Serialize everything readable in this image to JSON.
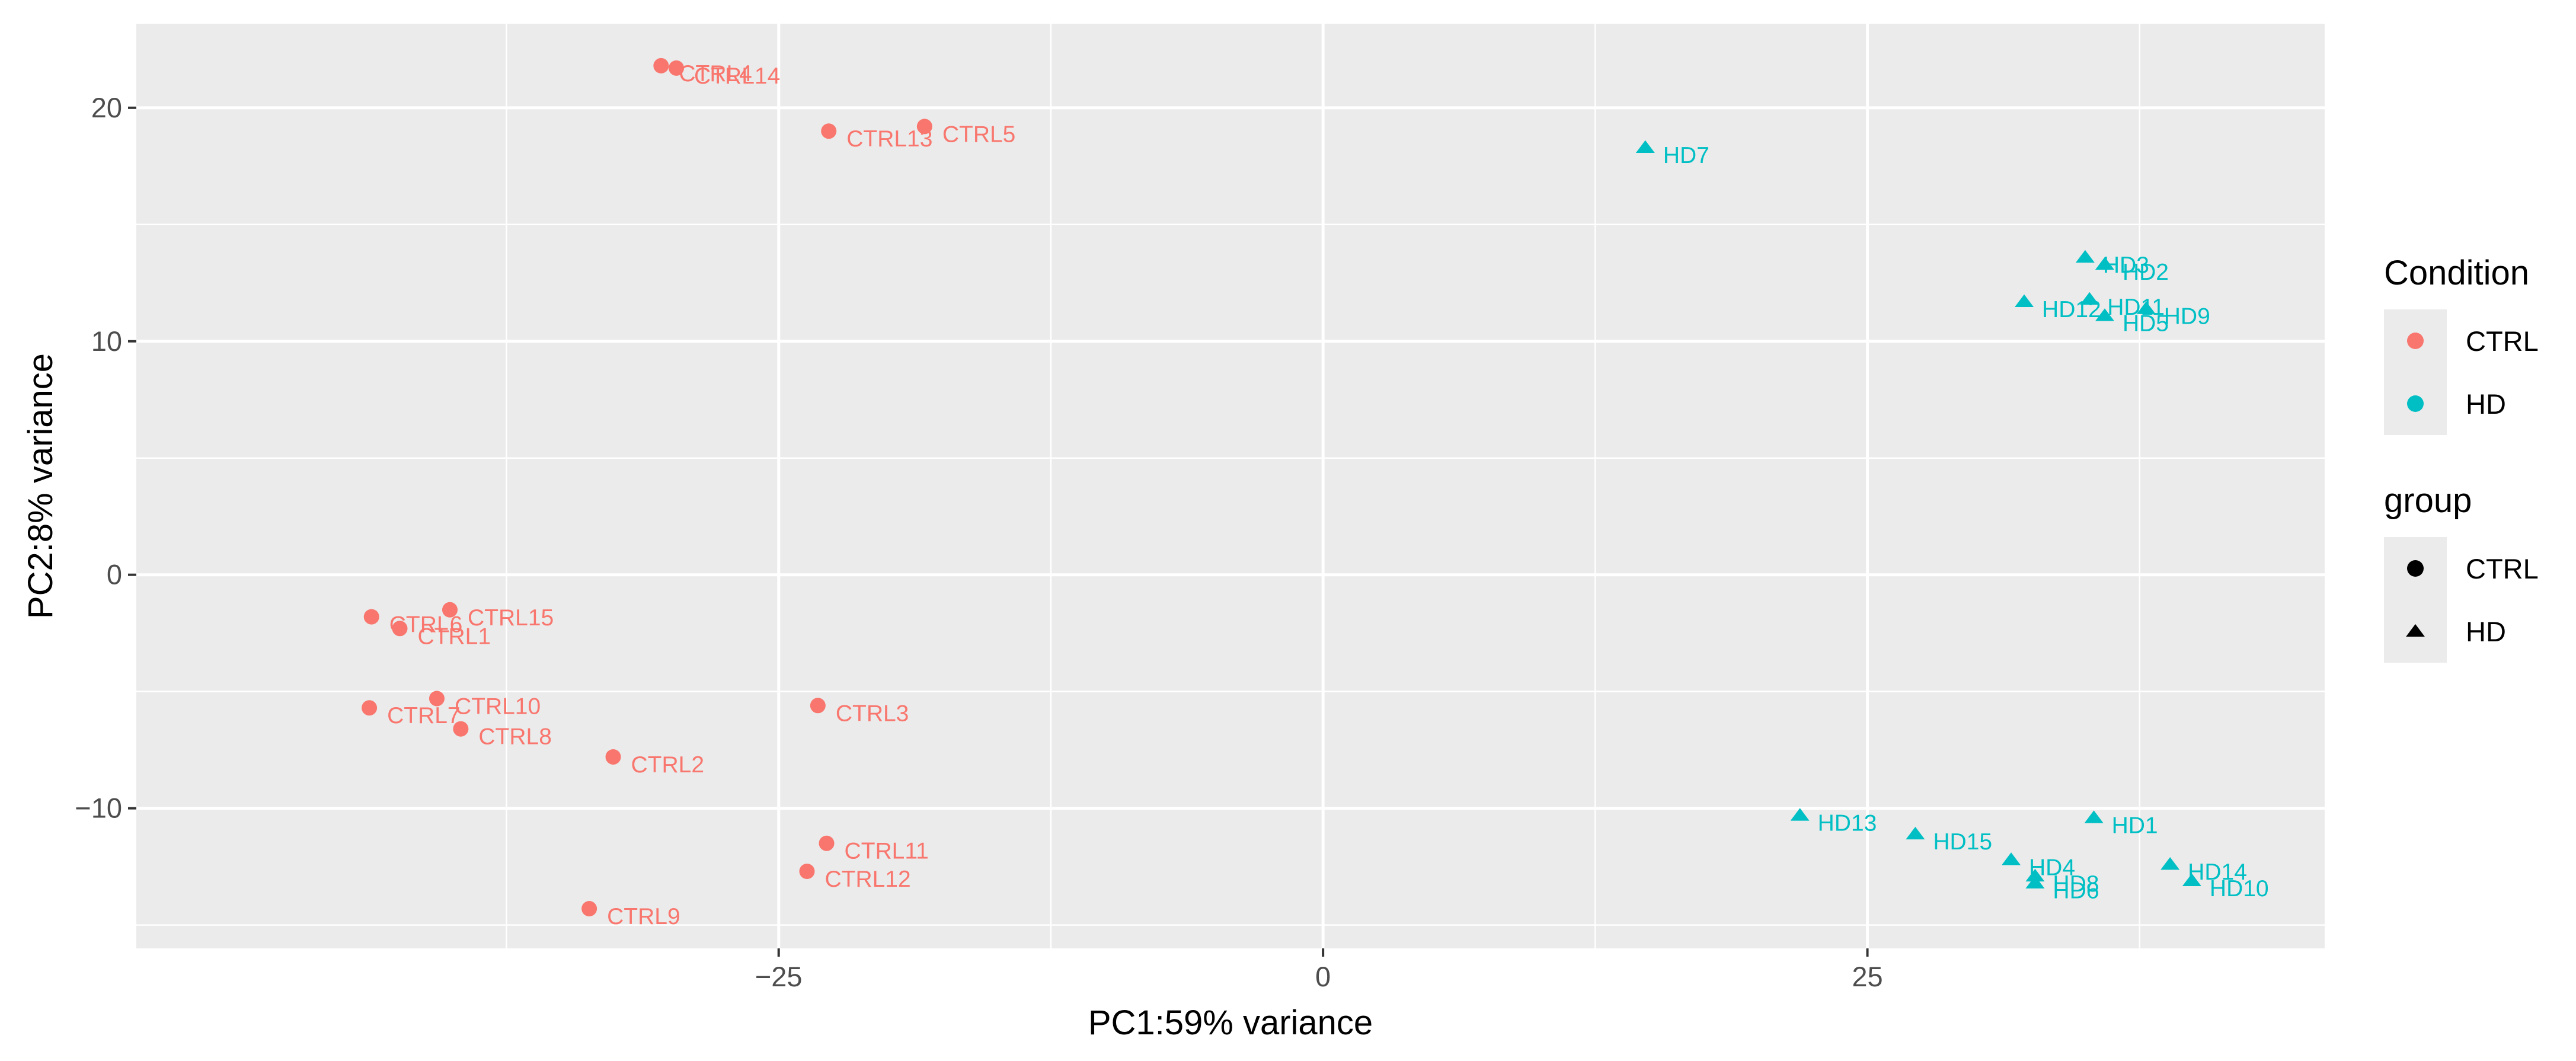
{
  "chart_data": {
    "type": "scatter",
    "title": "",
    "xlabel": "PC1:59% variance",
    "ylabel": "PC2:8% variance",
    "xlim": [
      -54.5,
      46
    ],
    "ylim": [
      -16,
      23.6
    ],
    "x_ticks": [
      -25,
      0,
      25
    ],
    "x_tick_labels": [
      "−25",
      "0",
      "25"
    ],
    "y_ticks": [
      -10,
      0,
      10,
      20
    ],
    "y_tick_labels": [
      "−10",
      "0",
      "10",
      "20"
    ],
    "grid": true,
    "panel_background": "#ebebeb",
    "series": [
      {
        "name": "CTRL",
        "color": "#f8766d",
        "shape": "circle",
        "points": [
          {
            "label": "CTRL4",
            "x": -30.4,
            "y": 21.8
          },
          {
            "label": "CTRL14",
            "x": -29.7,
            "y": 21.7
          },
          {
            "label": "CTRL13",
            "x": -22.7,
            "y": 19.0
          },
          {
            "label": "CTRL5",
            "x": -18.3,
            "y": 19.2
          },
          {
            "label": "CTRL6",
            "x": -43.7,
            "y": -1.8
          },
          {
            "label": "CTRL15",
            "x": -40.1,
            "y": -1.5
          },
          {
            "label": "CTRL1",
            "x": -42.4,
            "y": -2.3
          },
          {
            "label": "CTRL10",
            "x": -40.7,
            "y": -5.3
          },
          {
            "label": "CTRL7",
            "x": -43.8,
            "y": -5.7
          },
          {
            "label": "CTRL8",
            "x": -39.6,
            "y": -6.6
          },
          {
            "label": "CTRL3",
            "x": -23.2,
            "y": -5.6
          },
          {
            "label": "CTRL2",
            "x": -32.6,
            "y": -7.8
          },
          {
            "label": "CTRL11",
            "x": -22.8,
            "y": -11.5
          },
          {
            "label": "CTRL12",
            "x": -23.7,
            "y": -12.7
          },
          {
            "label": "CTRL9",
            "x": -33.7,
            "y": -14.3
          }
        ]
      },
      {
        "name": "HD",
        "color": "#00bfc4",
        "shape": "triangle",
        "points": [
          {
            "label": "HD7",
            "x": 14.8,
            "y": 18.3
          },
          {
            "label": "HD3",
            "x": 35.0,
            "y": 13.6
          },
          {
            "label": "HD2",
            "x": 35.9,
            "y": 13.3
          },
          {
            "label": "HD12",
            "x": 32.2,
            "y": 11.7
          },
          {
            "label": "HD11",
            "x": 35.2,
            "y": 11.8
          },
          {
            "label": "HD9",
            "x": 37.8,
            "y": 11.4
          },
          {
            "label": "HD5",
            "x": 35.9,
            "y": 11.1
          },
          {
            "label": "HD13",
            "x": 21.9,
            "y": -10.3
          },
          {
            "label": "HD15",
            "x": 27.2,
            "y": -11.1
          },
          {
            "label": "HD1",
            "x": 35.4,
            "y": -10.4
          },
          {
            "label": "HD4",
            "x": 31.6,
            "y": -12.2
          },
          {
            "label": "HD14",
            "x": 38.9,
            "y": -12.4
          },
          {
            "label": "HD8",
            "x": 32.7,
            "y": -12.9
          },
          {
            "label": "HD6",
            "x": 32.7,
            "y": -13.2
          },
          {
            "label": "HD10",
            "x": 39.9,
            "y": -13.1
          }
        ]
      }
    ],
    "legend": {
      "placement": "right",
      "sections": [
        {
          "title": "Condition",
          "entries": [
            {
              "label": "CTRL",
              "color": "#f8766d",
              "shape": "circle"
            },
            {
              "label": "HD",
              "color": "#00bfc4",
              "shape": "circle"
            }
          ]
        },
        {
          "title": "group",
          "entries": [
            {
              "label": "CTRL",
              "color": "#000000",
              "shape": "circle"
            },
            {
              "label": "HD",
              "color": "#000000",
              "shape": "triangle"
            }
          ]
        }
      ]
    }
  }
}
